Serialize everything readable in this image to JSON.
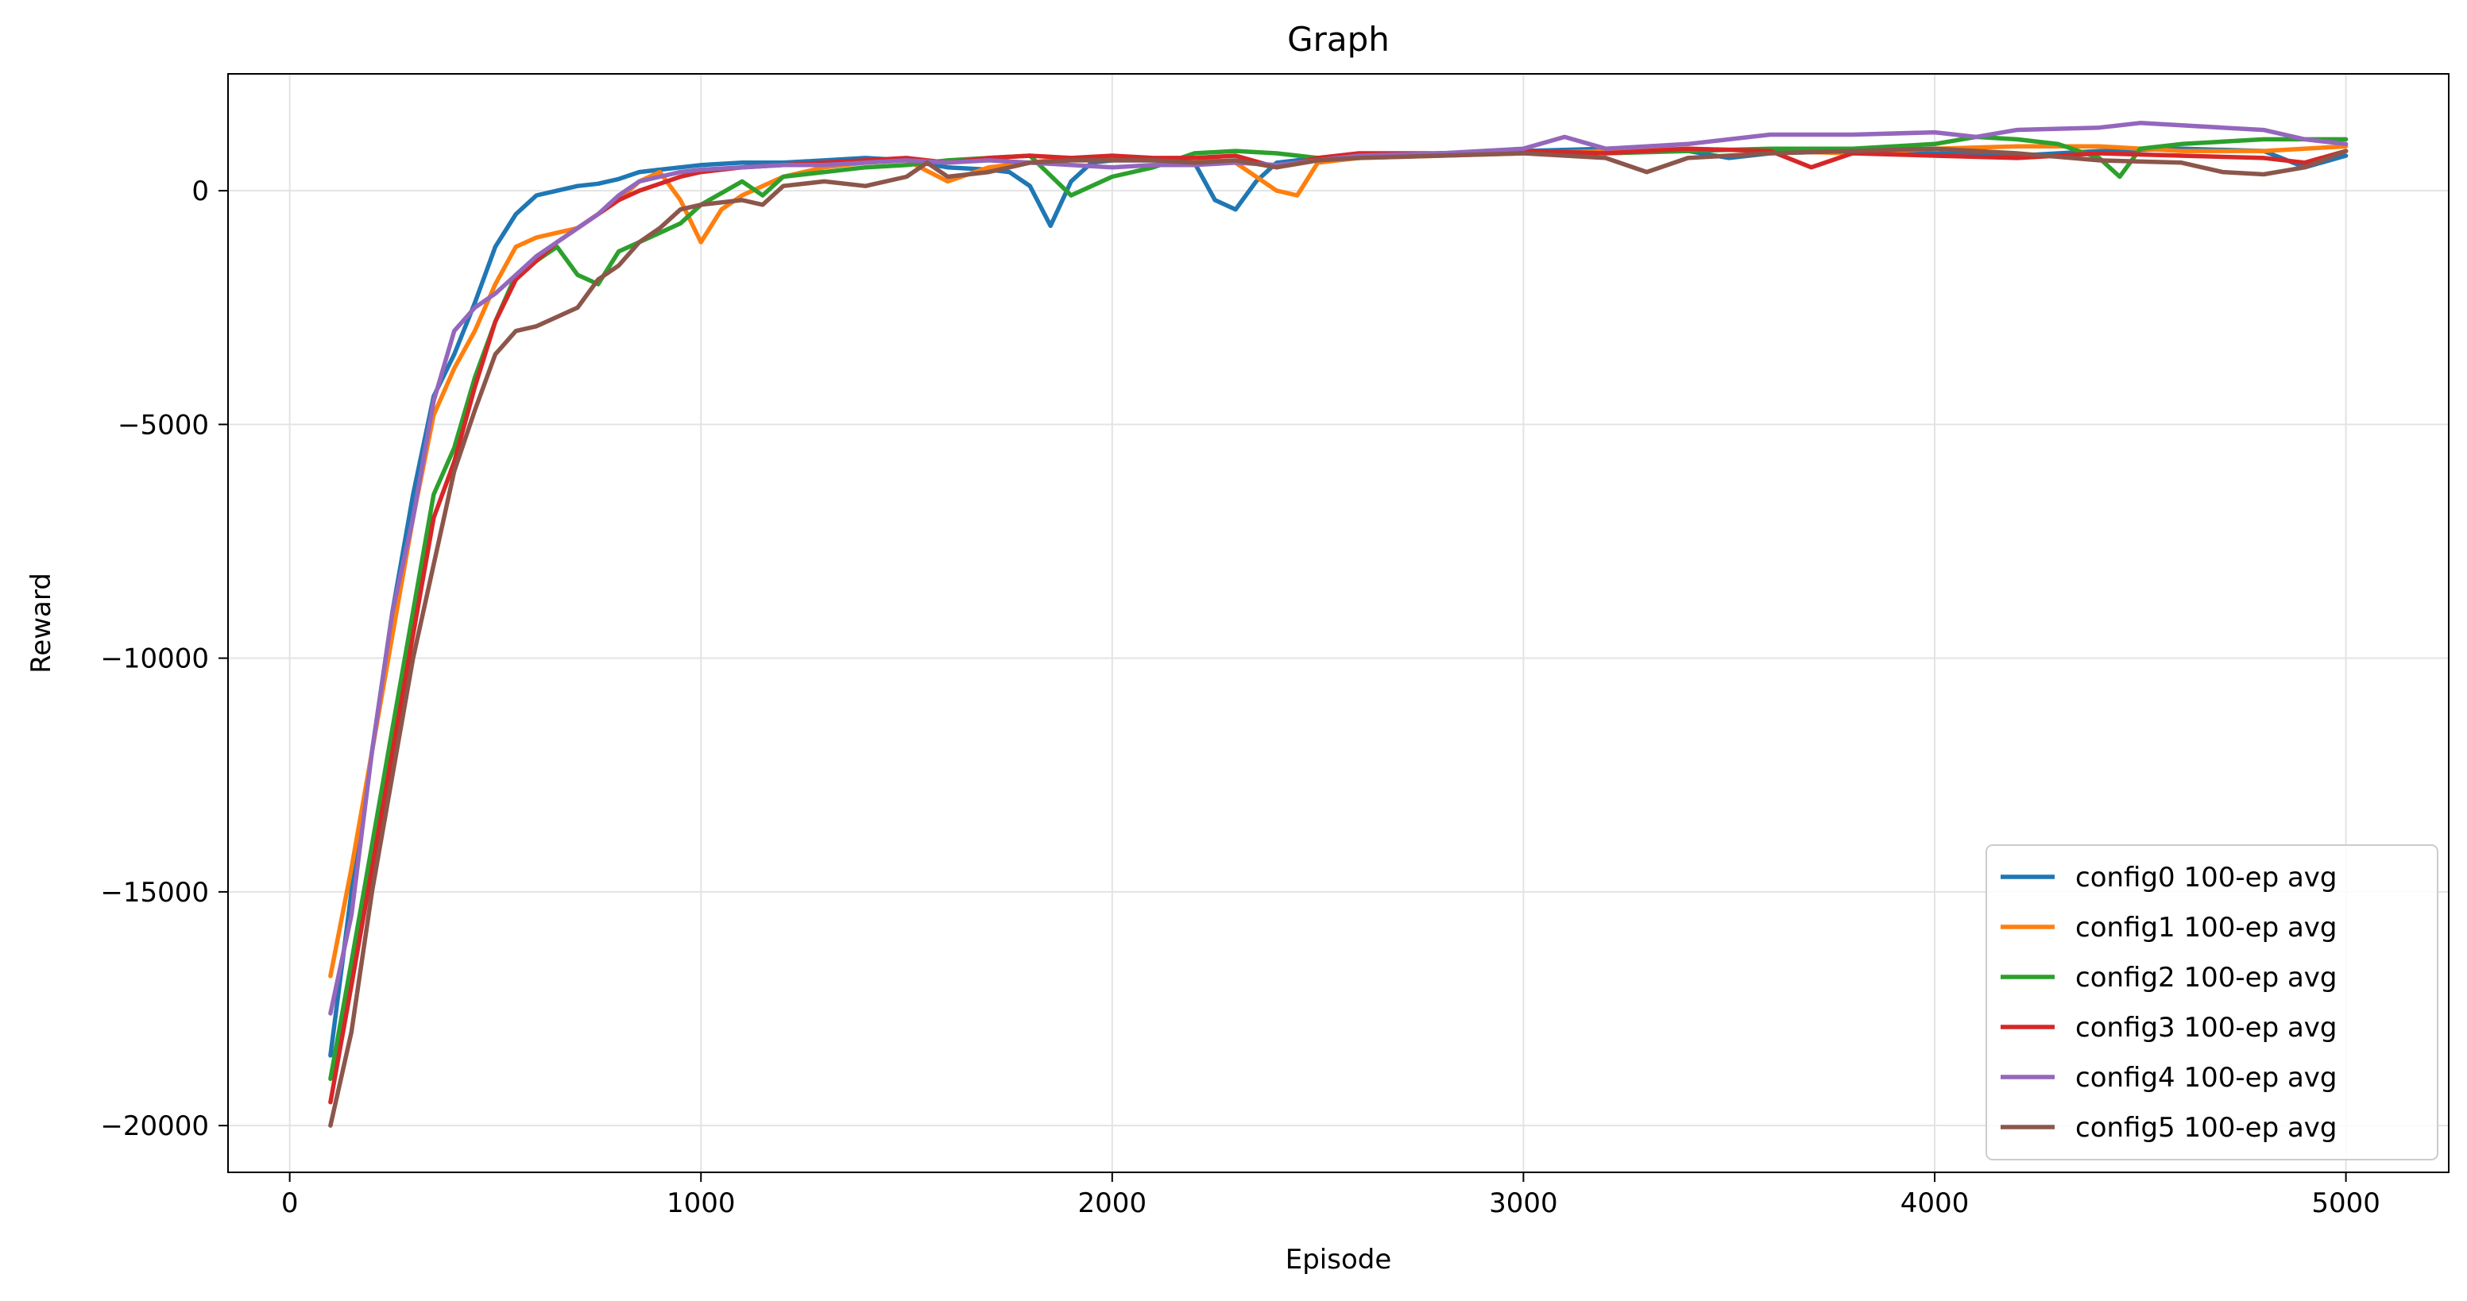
{
  "chart_data": {
    "type": "line",
    "title": "Graph",
    "xlabel": "Episode",
    "ylabel": "Reward",
    "xlim": [
      -150,
      5250
    ],
    "ylim": [
      -21000,
      2500
    ],
    "xticks": [
      0,
      1000,
      2000,
      3000,
      4000,
      5000
    ],
    "xtick_labels": [
      "0",
      "1000",
      "2000",
      "3000",
      "4000",
      "5000"
    ],
    "yticks": [
      -20000,
      -15000,
      -10000,
      -5000,
      0
    ],
    "ytick_labels": [
      "−20000",
      "−15000",
      "−10000",
      "−5000",
      "0"
    ],
    "grid": true,
    "legend_position": "lower-right",
    "series": [
      {
        "name": "config0 100-ep avg",
        "color": "#1f77b4",
        "x": [
          99,
          150,
          200,
          250,
          300,
          350,
          400,
          450,
          500,
          550,
          600,
          650,
          700,
          750,
          800,
          850,
          900,
          950,
          1000,
          1100,
          1200,
          1300,
          1400,
          1500,
          1600,
          1700,
          1750,
          1800,
          1850,
          1900,
          1950,
          2000,
          2100,
          2200,
          2250,
          2300,
          2350,
          2400,
          2500,
          2600,
          2800,
          3000,
          3200,
          3400,
          3500,
          3600,
          3800,
          4000,
          4200,
          4400,
          4600,
          4800,
          4900,
          5000
        ],
        "y": [
          -18500,
          -15000,
          -12000,
          -9000,
          -6500,
          -4400,
          -3500,
          -2400,
          -1200,
          -500,
          -100,
          0,
          100,
          150,
          250,
          400,
          450,
          500,
          550,
          600,
          600,
          650,
          700,
          650,
          500,
          450,
          400,
          100,
          -750,
          200,
          600,
          650,
          650,
          600,
          -200,
          -400,
          200,
          600,
          700,
          750,
          800,
          850,
          900,
          850,
          700,
          800,
          850,
          800,
          750,
          850,
          900,
          850,
          500,
          750
        ]
      },
      {
        "name": "config1 100-ep avg",
        "color": "#ff7f0e",
        "x": [
          99,
          150,
          200,
          250,
          300,
          350,
          400,
          450,
          500,
          550,
          600,
          650,
          700,
          750,
          800,
          850,
          900,
          950,
          1000,
          1050,
          1100,
          1150,
          1200,
          1300,
          1400,
          1500,
          1600,
          1700,
          1800,
          1900,
          2000,
          2100,
          2200,
          2300,
          2400,
          2450,
          2500,
          2600,
          2800,
          3000,
          3200,
          3400,
          3600,
          3800,
          4000,
          4200,
          4400,
          4600,
          4800,
          5000
        ],
        "y": [
          -16800,
          -14500,
          -12000,
          -9500,
          -7000,
          -4800,
          -3800,
          -3000,
          -2000,
          -1200,
          -1000,
          -900,
          -800,
          -500,
          -200,
          200,
          400,
          -200,
          -1100,
          -400,
          -100,
          100,
          300,
          500,
          600,
          650,
          200,
          500,
          600,
          700,
          700,
          650,
          700,
          600,
          0,
          -100,
          600,
          700,
          750,
          800,
          850,
          900,
          850,
          800,
          900,
          950,
          950,
          850,
          850,
          950
        ]
      },
      {
        "name": "config2 100-ep avg",
        "color": "#2ca02c",
        "x": [
          99,
          150,
          200,
          250,
          300,
          350,
          400,
          450,
          500,
          550,
          600,
          650,
          700,
          750,
          800,
          850,
          900,
          950,
          1000,
          1100,
          1150,
          1200,
          1300,
          1400,
          1500,
          1600,
          1700,
          1800,
          1900,
          1950,
          2000,
          2100,
          2200,
          2300,
          2400,
          2500,
          2600,
          2800,
          3000,
          3200,
          3400,
          3600,
          3800,
          4000,
          4100,
          4200,
          4300,
          4400,
          4450,
          4500,
          4600,
          4800,
          5000
        ],
        "y": [
          -19000,
          -16500,
          -14000,
          -11500,
          -9000,
          -6500,
          -5500,
          -4000,
          -2800,
          -1800,
          -1500,
          -1200,
          -1800,
          -2000,
          -1300,
          -1100,
          -900,
          -700,
          -300,
          200,
          -100,
          300,
          400,
          500,
          550,
          650,
          700,
          750,
          -100,
          100,
          300,
          500,
          800,
          850,
          800,
          700,
          700,
          800,
          850,
          800,
          850,
          900,
          900,
          1000,
          1150,
          1100,
          1000,
          700,
          300,
          900,
          1000,
          1100,
          1100
        ]
      },
      {
        "name": "config3 100-ep avg",
        "color": "#d62728",
        "x": [
          99,
          150,
          200,
          250,
          300,
          350,
          400,
          450,
          500,
          550,
          600,
          650,
          700,
          750,
          800,
          850,
          900,
          950,
          1000,
          1100,
          1200,
          1300,
          1400,
          1500,
          1600,
          1700,
          1800,
          1900,
          2000,
          2100,
          2200,
          2300,
          2400,
          2500,
          2600,
          2800,
          3000,
          3200,
          3400,
          3600,
          3700,
          3800,
          4000,
          4200,
          4400,
          4600,
          4800,
          4900,
          5000
        ],
        "y": [
          -19500,
          -17000,
          -14500,
          -12000,
          -9500,
          -7000,
          -5800,
          -4200,
          -2800,
          -1900,
          -1500,
          -1100,
          -800,
          -500,
          -200,
          0,
          150,
          300,
          400,
          500,
          550,
          600,
          650,
          700,
          600,
          700,
          750,
          700,
          750,
          700,
          700,
          750,
          500,
          700,
          800,
          800,
          850,
          800,
          900,
          850,
          500,
          800,
          750,
          700,
          800,
          750,
          700,
          600,
          850
        ]
      },
      {
        "name": "config4 100-ep avg",
        "color": "#9467bd",
        "x": [
          99,
          150,
          200,
          250,
          300,
          350,
          400,
          450,
          500,
          550,
          600,
          650,
          700,
          750,
          800,
          850,
          900,
          950,
          1000,
          1100,
          1200,
          1300,
          1400,
          1500,
          1600,
          1700,
          1800,
          1900,
          2000,
          2100,
          2200,
          2300,
          2400,
          2500,
          2600,
          2800,
          3000,
          3100,
          3200,
          3400,
          3600,
          3800,
          4000,
          4100,
          4200,
          4400,
          4500,
          4600,
          4700,
          4800,
          4900,
          5000
        ],
        "y": [
          -17600,
          -15500,
          -12000,
          -9000,
          -7000,
          -4500,
          -3000,
          -2500,
          -2200,
          -1800,
          -1400,
          -1100,
          -800,
          -500,
          -100,
          200,
          300,
          400,
          450,
          500,
          550,
          550,
          600,
          650,
          600,
          650,
          600,
          550,
          500,
          550,
          550,
          600,
          550,
          650,
          750,
          800,
          900,
          1150,
          900,
          1000,
          1200,
          1200,
          1250,
          1150,
          1300,
          1350,
          1450,
          1400,
          1350,
          1300,
          1100,
          1000
        ]
      },
      {
        "name": "config5 100-ep avg",
        "color": "#8c564b",
        "x": [
          99,
          150,
          200,
          250,
          300,
          350,
          400,
          450,
          500,
          550,
          600,
          650,
          700,
          750,
          800,
          850,
          900,
          950,
          1000,
          1100,
          1150,
          1200,
          1300,
          1400,
          1500,
          1550,
          1600,
          1700,
          1800,
          1900,
          2000,
          2100,
          2200,
          2300,
          2400,
          2500,
          2600,
          2800,
          3000,
          3200,
          3300,
          3400,
          3600,
          3800,
          4000,
          4200,
          4400,
          4600,
          4700,
          4800,
          4900,
          5000
        ],
        "y": [
          -20000,
          -18000,
          -15000,
          -12500,
          -10000,
          -8000,
          -6000,
          -4700,
          -3500,
          -3000,
          -2900,
          -2700,
          -2500,
          -1900,
          -1600,
          -1100,
          -800,
          -400,
          -300,
          -200,
          -300,
          100,
          200,
          100,
          300,
          600,
          300,
          400,
          600,
          650,
          650,
          650,
          600,
          650,
          500,
          650,
          700,
          750,
          800,
          700,
          400,
          700,
          800,
          850,
          900,
          800,
          650,
          600,
          400,
          350,
          500,
          850
        ]
      }
    ]
  }
}
